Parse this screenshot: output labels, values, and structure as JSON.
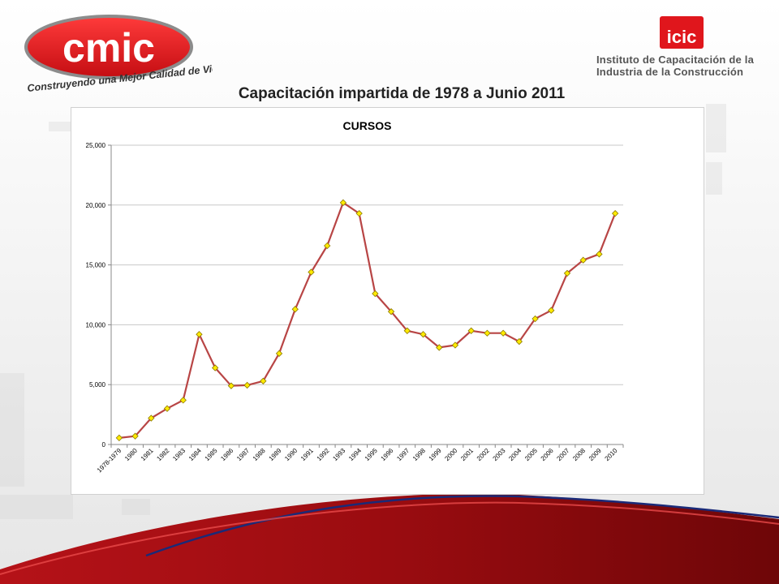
{
  "header": {
    "cmic_logo_text": "cmic",
    "cmic_slogan": "Construyendo una Mejor Calidad de Vida",
    "icic_badge": "icic",
    "icic_name_line1": "Instituto de Capacitación de la",
    "icic_name_line2": "Industria de la Construcción",
    "page_title": "Capacitación impartida de 1978 a Junio 2011"
  },
  "colors": {
    "brand_red": "#e0161c",
    "line": "#b84545",
    "marker_fill": "#ffea00",
    "marker_stroke": "#8c7a00",
    "grid": "#c8c8c8"
  },
  "chart_data": {
    "type": "line",
    "title": "CURSOS",
    "xlabel": "",
    "ylabel": "",
    "ylim": [
      0,
      25000
    ],
    "yticks": [
      0,
      5000,
      10000,
      15000,
      20000,
      25000
    ],
    "ytick_labels": [
      "0",
      "5,000",
      "10,000",
      "15,000",
      "20,000",
      "25,000"
    ],
    "grid": true,
    "legend": "none",
    "categories": [
      "1978-1979",
      "1980",
      "1981",
      "1982",
      "1983",
      "1984",
      "1985",
      "1986",
      "1987",
      "1988",
      "1989",
      "1990",
      "1991",
      "1992",
      "1993",
      "1994",
      "1995",
      "1996",
      "1997",
      "1998",
      "1999",
      "2000",
      "2001",
      "2002",
      "2003",
      "2004",
      "2005",
      "2006",
      "2007",
      "2008",
      "2009",
      "2010"
    ],
    "series": [
      {
        "values": [
          550,
          700,
          2200,
          3000,
          3700,
          9200,
          6400,
          4900,
          4950,
          5300,
          7600,
          11300,
          14400,
          16600,
          20200,
          19300,
          12600,
          11100,
          9500,
          9200,
          8100,
          8300,
          9500,
          9300,
          9300,
          8600,
          10500,
          11200,
          14300,
          15400,
          15900,
          19300
        ]
      }
    ]
  }
}
